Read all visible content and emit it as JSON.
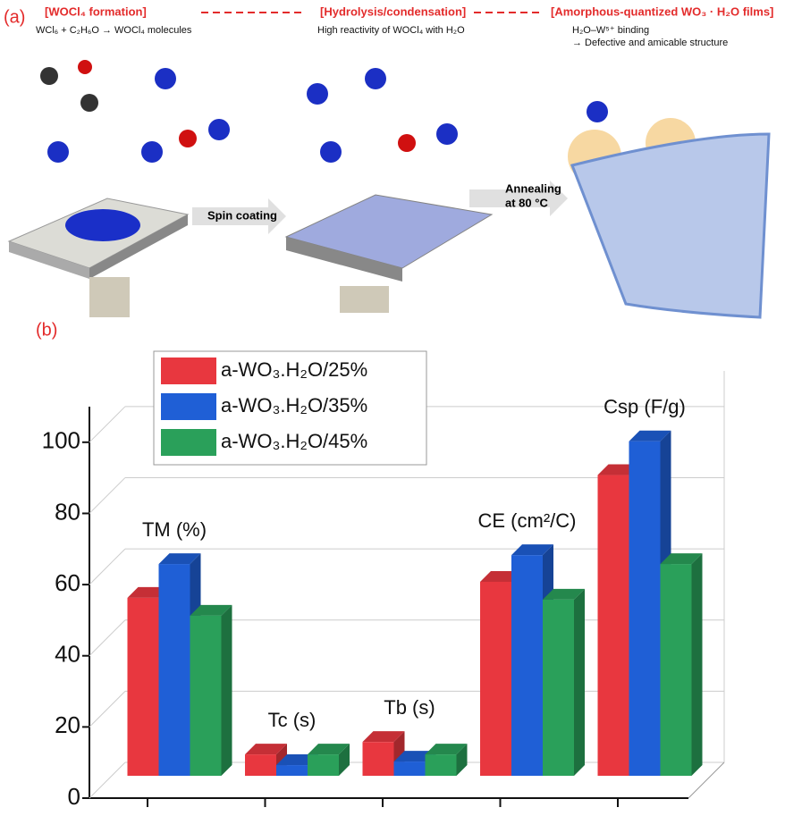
{
  "panel_a": {
    "label": "(a)",
    "steps": [
      "[WOCl₄ formation]",
      "[Hydrolysis/condensation]",
      "[Amorphous-quantized WO₃ · H₂O films]"
    ],
    "notes": [
      "WCl₆ + C₂H₆O → WOCl₄ molecules",
      "High reactivity of WOCl₄ with H₂O",
      "H₂O–W⁵⁺ binding",
      "→ Defective and amicable structure"
    ],
    "process": [
      "Spin coating",
      "Annealing",
      "at 80 °C"
    ]
  },
  "chart_data": {
    "type": "bar3d",
    "panel_label": "(b)",
    "categories": [
      "TM (%)",
      "Tc (s)",
      "Tb (s)",
      "CE (cm²/C)",
      "Csp (F/g)"
    ],
    "series": [
      {
        "name": "a-WO₃.H₂O/25%",
        "color": "#e8373f",
        "values": [
          50,
          6,
          9.5,
          54.5,
          84.5
        ]
      },
      {
        "name": "a-WO₃.H₂O/35%",
        "color": "#1f5fd6",
        "values": [
          59.5,
          3,
          4,
          62,
          94
        ]
      },
      {
        "name": "a-WO₃.H₂O/45%",
        "color": "#2aa05a",
        "values": [
          45,
          6,
          6,
          49.5,
          59.5
        ]
      }
    ],
    "ylim": [
      0,
      110
    ],
    "yticks": [
      0,
      20,
      40,
      60,
      80,
      100
    ],
    "grid": true
  }
}
